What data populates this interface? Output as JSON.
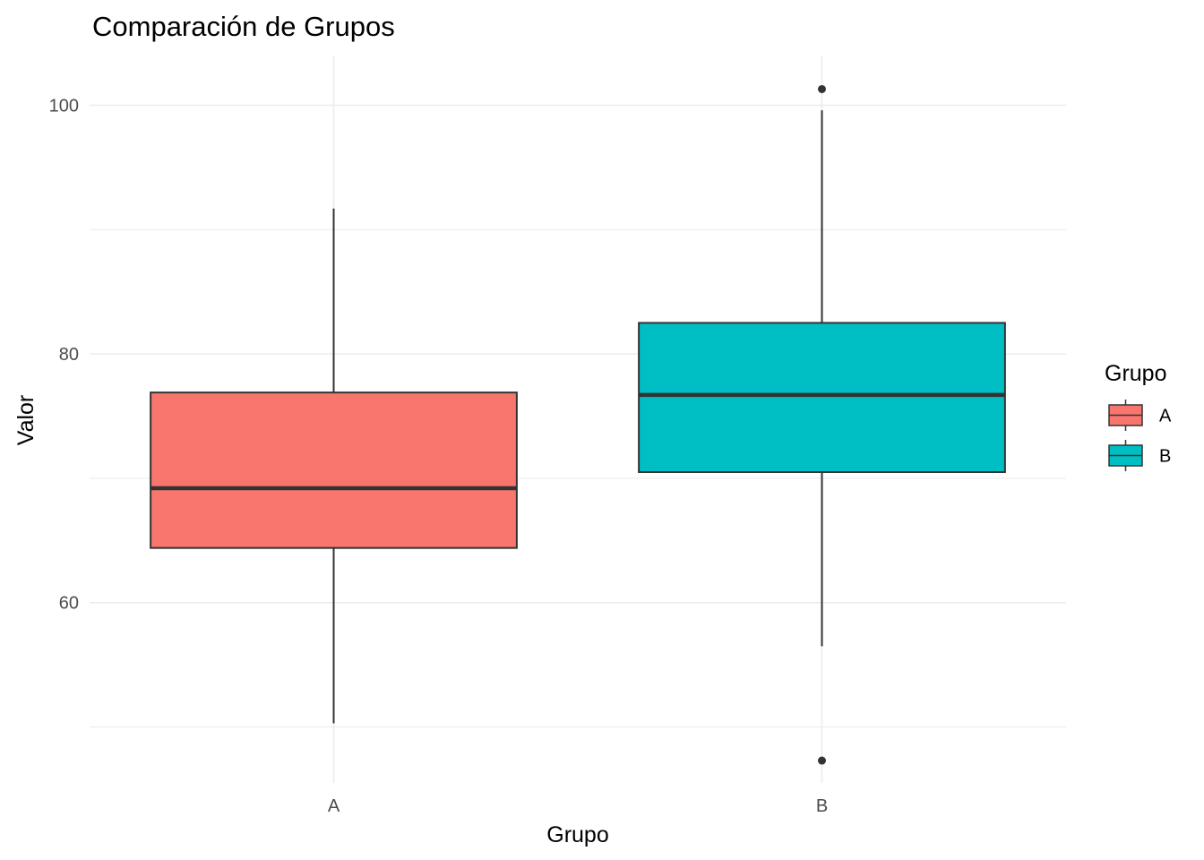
{
  "chart_data": {
    "type": "boxplot",
    "title": "Comparación de Grupos",
    "xlabel": "Grupo",
    "ylabel": "Valor",
    "ylim": [
      45.5,
      104
    ],
    "y_ticks": [
      60,
      80,
      100
    ],
    "y_minor_ticks": [
      50,
      70,
      90
    ],
    "categories": [
      "A",
      "B"
    ],
    "grid": true,
    "legend": {
      "title": "Grupo",
      "position": "right",
      "entries": [
        "A",
        "B"
      ]
    },
    "series": [
      {
        "name": "A",
        "color": "#F8766D",
        "whisker_low": 50.3,
        "q1": 64.4,
        "median": 69.2,
        "q3": 76.9,
        "whisker_high": 91.7,
        "outliers": []
      },
      {
        "name": "B",
        "color": "#00BFC4",
        "whisker_low": 56.5,
        "q1": 70.5,
        "median": 76.7,
        "q3": 82.5,
        "whisker_high": 99.6,
        "outliers": [
          101.3,
          47.3
        ]
      }
    ]
  }
}
